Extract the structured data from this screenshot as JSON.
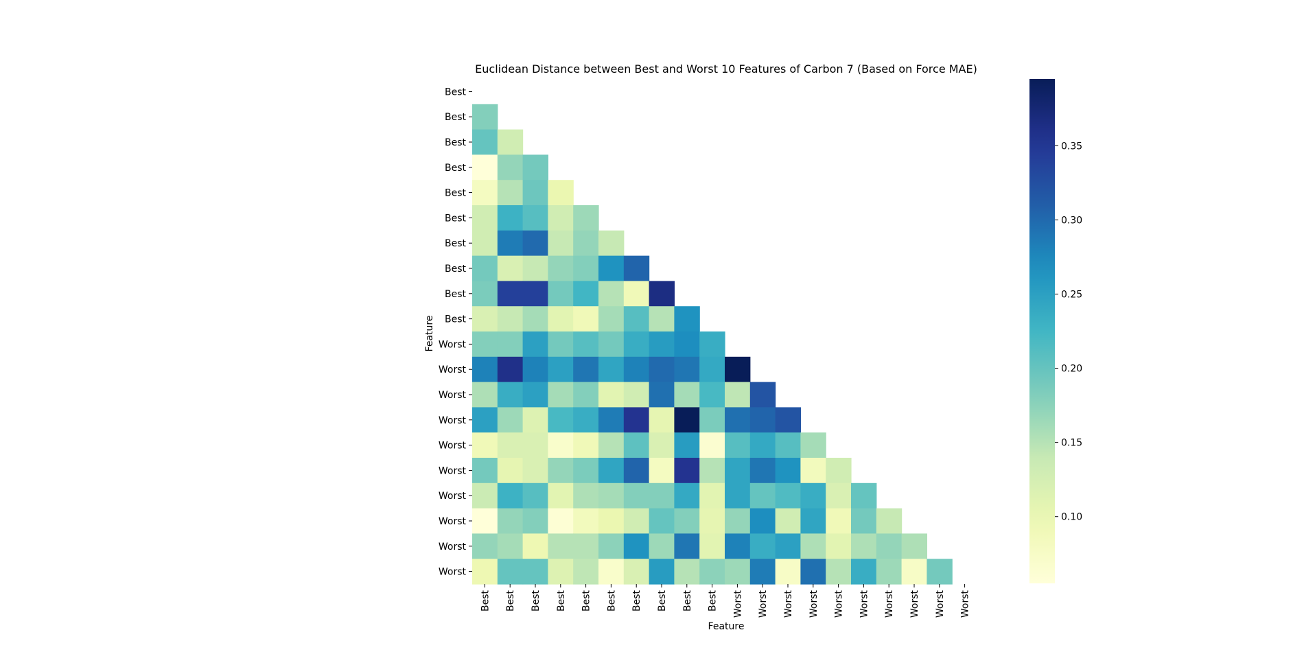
{
  "chart_data": {
    "type": "heatmap",
    "title": "Euclidean Distance between Best and Worst 10 Features of Carbon 7 (Based on Force MAE)",
    "xlabel": "Feature",
    "ylabel": "Feature",
    "row_labels": [
      "Best",
      "Best",
      "Best",
      "Best",
      "Best",
      "Best",
      "Best",
      "Best",
      "Best",
      "Best",
      "Worst",
      "Worst",
      "Worst",
      "Worst",
      "Worst",
      "Worst",
      "Worst",
      "Worst",
      "Worst",
      "Worst"
    ],
    "col_labels": [
      "Best",
      "Best",
      "Best",
      "Best",
      "Best",
      "Best",
      "Best",
      "Best",
      "Best",
      "Best",
      "Worst",
      "Worst",
      "Worst",
      "Worst",
      "Worst",
      "Worst",
      "Worst",
      "Worst",
      "Worst",
      "Worst"
    ],
    "mask": "upper-triangle-including-diagonal",
    "values": [
      [],
      [
        0.18
      ],
      [
        0.2,
        0.13
      ],
      [
        0.055,
        0.17,
        0.19
      ],
      [
        0.08,
        0.15,
        0.195,
        0.1
      ],
      [
        0.13,
        0.23,
        0.21,
        0.13,
        0.165
      ],
      [
        0.13,
        0.285,
        0.3,
        0.14,
        0.17,
        0.14
      ],
      [
        0.19,
        0.12,
        0.14,
        0.17,
        0.18,
        0.265,
        0.305
      ],
      [
        0.185,
        0.34,
        0.34,
        0.19,
        0.225,
        0.15,
        0.09,
        0.365
      ],
      [
        0.12,
        0.14,
        0.16,
        0.11,
        0.09,
        0.16,
        0.21,
        0.15,
        0.265
      ],
      [
        0.18,
        0.18,
        0.25,
        0.19,
        0.21,
        0.19,
        0.235,
        0.255,
        0.27,
        0.235
      ],
      [
        0.28,
        0.36,
        0.28,
        0.25,
        0.29,
        0.245,
        0.28,
        0.3,
        0.29,
        0.24,
        0.395
      ],
      [
        0.155,
        0.235,
        0.25,
        0.16,
        0.18,
        0.11,
        0.13,
        0.295,
        0.16,
        0.22,
        0.145,
        0.32
      ],
      [
        0.25,
        0.165,
        0.115,
        0.22,
        0.235,
        0.285,
        0.355,
        0.105,
        0.395,
        0.185,
        0.295,
        0.305,
        0.32
      ],
      [
        0.09,
        0.12,
        0.12,
        0.07,
        0.09,
        0.15,
        0.205,
        0.12,
        0.255,
        0.065,
        0.21,
        0.24,
        0.21,
        0.16
      ],
      [
        0.19,
        0.105,
        0.12,
        0.17,
        0.185,
        0.245,
        0.305,
        0.08,
        0.355,
        0.15,
        0.245,
        0.29,
        0.265,
        0.085,
        0.13
      ],
      [
        0.135,
        0.23,
        0.21,
        0.11,
        0.155,
        0.16,
        0.18,
        0.18,
        0.24,
        0.11,
        0.245,
        0.2,
        0.215,
        0.235,
        0.12,
        0.2
      ],
      [
        0.055,
        0.17,
        0.18,
        0.06,
        0.085,
        0.1,
        0.13,
        0.2,
        0.18,
        0.105,
        0.17,
        0.27,
        0.13,
        0.245,
        0.09,
        0.19,
        0.14
      ],
      [
        0.17,
        0.16,
        0.095,
        0.15,
        0.15,
        0.175,
        0.265,
        0.165,
        0.29,
        0.11,
        0.28,
        0.235,
        0.25,
        0.155,
        0.11,
        0.155,
        0.17,
        0.155
      ],
      [
        0.095,
        0.2,
        0.2,
        0.115,
        0.145,
        0.07,
        0.12,
        0.255,
        0.15,
        0.175,
        0.165,
        0.285,
        0.075,
        0.295,
        0.15,
        0.235,
        0.165,
        0.075,
        0.19
      ]
    ],
    "colorbar": {
      "min": 0.055,
      "max": 0.395,
      "ticks": [
        0.1,
        0.15,
        0.2,
        0.25,
        0.3,
        0.35
      ],
      "tick_labels": [
        "0.10",
        "0.15",
        "0.20",
        "0.25",
        "0.30",
        "0.35"
      ],
      "colormap": "YlGnBu"
    },
    "grid": false,
    "legend": "colorbar-right"
  }
}
